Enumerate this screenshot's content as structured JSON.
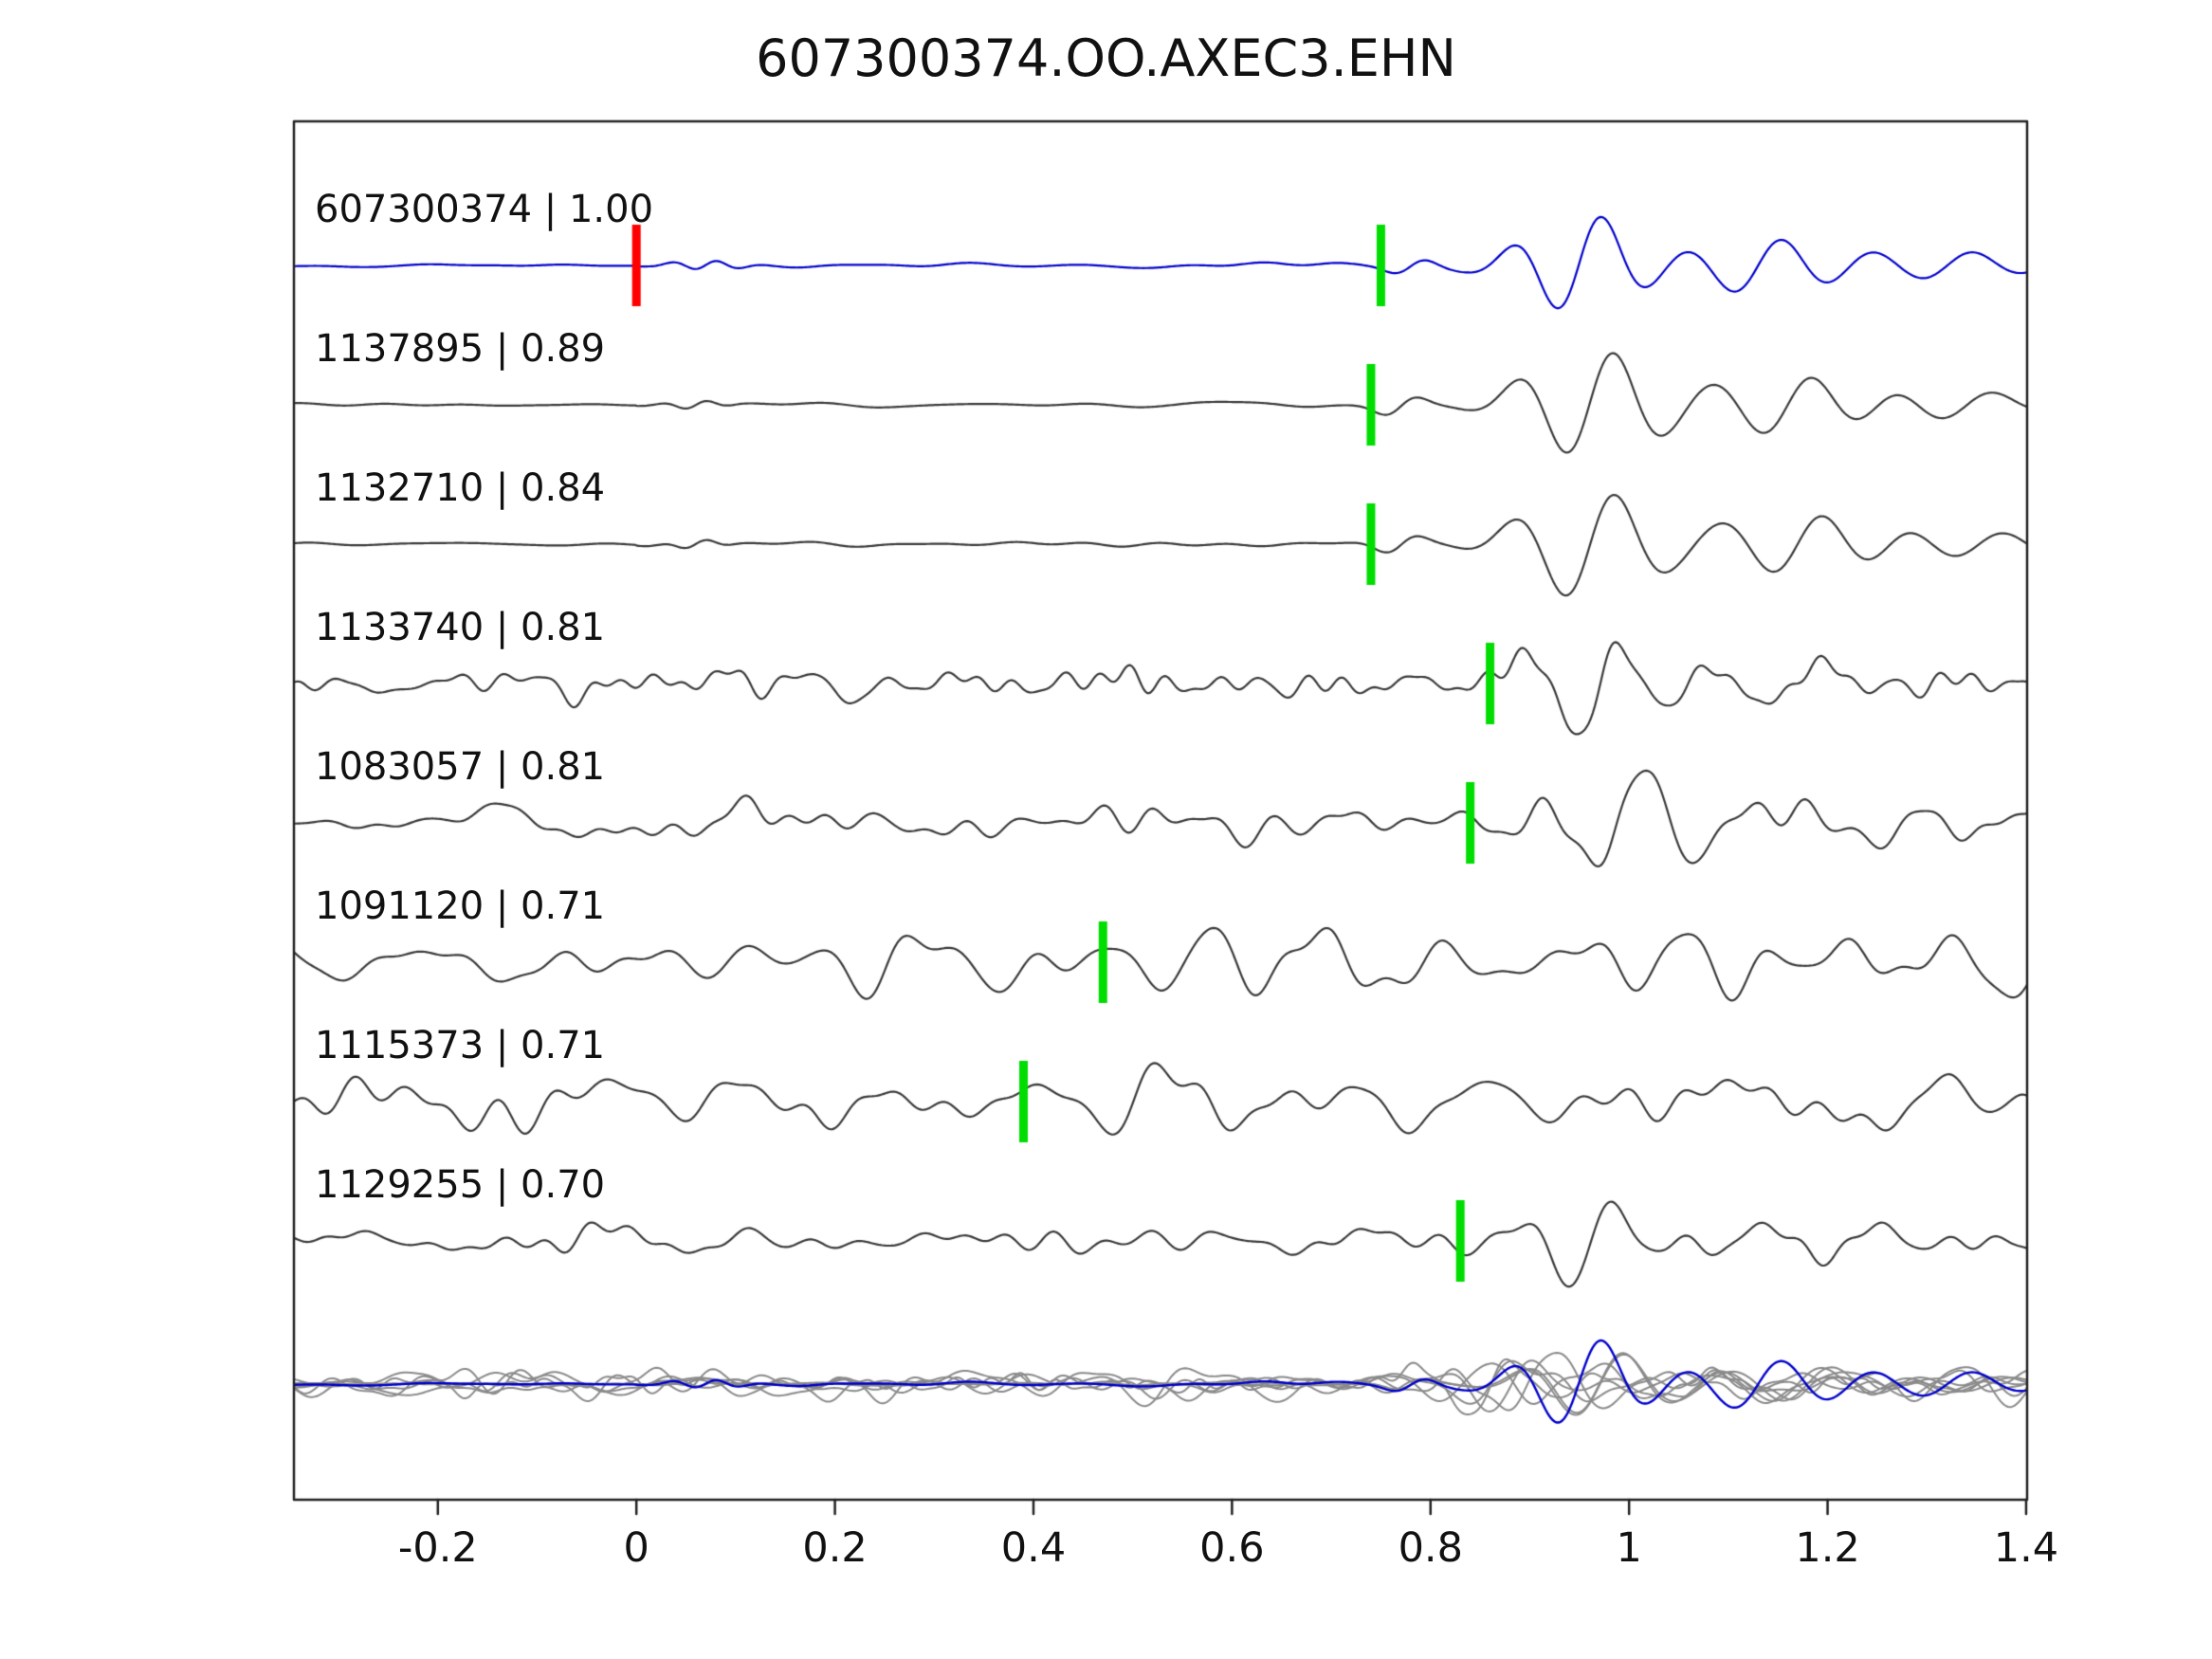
{
  "title": "607300374.OO.AXEC3.EHN",
  "chart_data": {
    "type": "line",
    "title": "607300374.OO.AXEC3.EHN",
    "xlabel": "",
    "ylabel": "",
    "xlim": [
      -0.345,
      1.401
    ],
    "xticks": [
      -0.2,
      0,
      0.2,
      0.4,
      0.6,
      0.8,
      1,
      1.2,
      1.4
    ],
    "xtick_labels": [
      "-0.2",
      "0",
      "0.2",
      "0.4",
      "0.6",
      "0.8",
      "1",
      "1.2",
      "1.4"
    ],
    "grid": false,
    "legend": "none",
    "colors": {
      "reference_trace": "#0000cc",
      "match_trace": "#3a3a3a",
      "pick_marker": "#00dd00",
      "reference_marker": "#ff0000",
      "overlay_trace": "#8a8a8a",
      "axis": "#222222"
    },
    "description": "Waveform similarity plot: reference event trace (blue) on top, seven matched event traces below sorted by cross-correlation coefficient, green bars mark pick times, red bar marks reference zero time, bottom row shows all traces aligned and overlaid with reference in blue.",
    "traces": [
      {
        "label": "607300374 | 1.00",
        "id": "607300374",
        "correlation": 1.0,
        "pick_time": 0.75,
        "ref_marker_time": 0.0,
        "color": "#0000cc",
        "render": {
          "seed": 101,
          "noise_amp": 2.2,
          "noise_fmax": 16,
          "quiet": true,
          "packets": [
            {
              "c": 0.07,
              "w": 0.035,
              "T": 0.05,
              "A": 6
            },
            {
              "c": 0.78,
              "w": 0.03,
              "T": 0.08,
              "A": 9
            },
            {
              "c": 0.95,
              "w": 0.07,
              "T": 0.095,
              "A": 52
            },
            {
              "c": 1.13,
              "w": 0.09,
              "T": 0.1,
              "A": 28
            },
            {
              "c": 1.32,
              "w": 0.12,
              "T": 0.105,
              "A": 14
            }
          ]
        }
      },
      {
        "label": "1137895 | 0.89",
        "id": "1137895",
        "correlation": 0.89,
        "pick_time": 0.74,
        "color": "#3a3a3a",
        "render": {
          "seed": 202,
          "noise_amp": 2.4,
          "noise_fmax": 15,
          "quiet": true,
          "packets": [
            {
              "c": 0.06,
              "w": 0.03,
              "T": 0.05,
              "A": 5
            },
            {
              "c": 0.77,
              "w": 0.03,
              "T": 0.08,
              "A": 10
            },
            {
              "c": 0.96,
              "w": 0.08,
              "T": 0.1,
              "A": 58
            },
            {
              "c": 1.16,
              "w": 0.1,
              "T": 0.1,
              "A": 30
            },
            {
              "c": 1.34,
              "w": 0.1,
              "T": 0.11,
              "A": 13
            }
          ]
        }
      },
      {
        "label": "1132710 | 0.84",
        "id": "1132710",
        "correlation": 0.84,
        "pick_time": 0.74,
        "color": "#3a3a3a",
        "render": {
          "seed": 303,
          "noise_amp": 2.6,
          "noise_fmax": 15,
          "quiet": true,
          "packets": [
            {
              "c": 0.06,
              "w": 0.03,
              "T": 0.05,
              "A": 5
            },
            {
              "c": 0.77,
              "w": 0.03,
              "T": 0.08,
              "A": 10
            },
            {
              "c": 0.96,
              "w": 0.08,
              "T": 0.105,
              "A": 60
            },
            {
              "c": 1.17,
              "w": 0.1,
              "T": 0.105,
              "A": 32
            },
            {
              "c": 1.35,
              "w": 0.1,
              "T": 0.11,
              "A": 16
            }
          ]
        }
      },
      {
        "label": "1133740 | 0.81",
        "id": "1133740",
        "correlation": 0.81,
        "pick_time": 0.86,
        "color": "#3a3a3a",
        "render": {
          "seed": 404,
          "noise_amp": 13,
          "noise_fmax": 34,
          "quiet": false,
          "packets": [
            {
              "c": 0.97,
              "w": 0.08,
              "T": 0.1,
              "A": 46
            },
            {
              "c": 1.17,
              "w": 0.12,
              "T": 0.1,
              "A": 18
            }
          ]
        }
      },
      {
        "label": "1083057 | 0.81",
        "id": "1083057",
        "correlation": 0.81,
        "pick_time": 0.84,
        "color": "#3a3a3a",
        "render": {
          "seed": 505,
          "noise_amp": 15,
          "noise_fmax": 28,
          "quiet": false,
          "packets": [
            {
              "c": 0.99,
              "w": 0.09,
              "T": 0.11,
              "A": 50
            },
            {
              "c": 1.27,
              "w": 0.15,
              "T": 0.11,
              "A": 20
            }
          ]
        }
      },
      {
        "label": "1091120 | 0.71",
        "id": "1091120",
        "correlation": 0.71,
        "pick_time": 0.47,
        "color": "#3a3a3a",
        "render": {
          "seed": 606,
          "noise_amp": 23,
          "noise_fmax": 21,
          "quiet": false,
          "packets": [
            {
              "c": 0.66,
              "w": 0.15,
              "T": 0.12,
              "A": 24
            },
            {
              "c": 1.02,
              "w": 0.15,
              "T": 0.12,
              "A": 28
            },
            {
              "c": 1.3,
              "w": 0.12,
              "T": 0.12,
              "A": 20
            }
          ]
        }
      },
      {
        "label": "1115373 | 0.71",
        "id": "1115373",
        "correlation": 0.71,
        "pick_time": 0.39,
        "color": "#3a3a3a",
        "render": {
          "seed": 707,
          "noise_amp": 21,
          "noise_fmax": 23,
          "quiet": false,
          "packets": [
            {
              "c": 0.5,
              "w": 0.1,
              "T": 0.13,
              "A": 38
            },
            {
              "c": 0.95,
              "w": 0.2,
              "T": 0.12,
              "A": 16
            }
          ]
        }
      },
      {
        "label": "1129255 | 0.70",
        "id": "1129255",
        "correlation": 0.7,
        "pick_time": 0.83,
        "color": "#3a3a3a",
        "render": {
          "seed": 808,
          "noise_amp": 11,
          "noise_fmax": 27,
          "quiet": false,
          "packets": [
            {
              "c": 0.96,
              "w": 0.08,
              "T": 0.1,
              "A": 48
            },
            {
              "c": 1.22,
              "w": 0.15,
              "T": 0.11,
              "A": 18
            }
          ]
        }
      }
    ],
    "overlay": {
      "description": "All traces time-shifted to align picks and overlaid; matched traces gray, reference trace blue on top",
      "align_pick_time": 0.75,
      "gray_color": "#8a8a8a",
      "reference_color": "#0000cc"
    }
  }
}
